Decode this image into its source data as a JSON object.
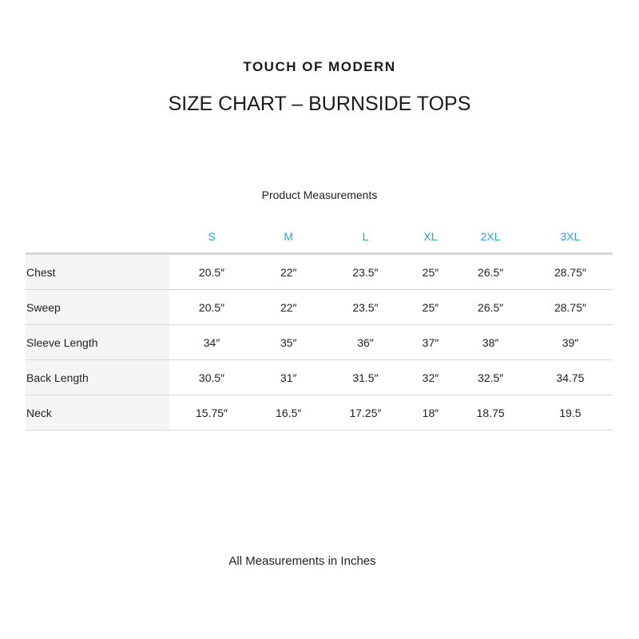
{
  "brand": "TOUCH OF MODERN",
  "title": "SIZE CHART – BURNSIDE TOPS",
  "subtitle": "Product Measurements",
  "table": {
    "sizes": [
      "S",
      "M",
      "L",
      "XL",
      "2XL",
      "3XL"
    ],
    "rows": [
      {
        "label": "Chest",
        "values": [
          "20.5″",
          "22″",
          "23.5″",
          "25″",
          "26.5″",
          "28.75″"
        ]
      },
      {
        "label": "Sweep",
        "values": [
          "20.5″",
          "22″",
          "23.5″",
          "25″",
          "26.5″",
          "28.75″"
        ]
      },
      {
        "label": "Sleeve Length",
        "values": [
          "34″",
          "35″",
          "36″",
          "37″",
          "38″",
          "39″"
        ]
      },
      {
        "label": "Back Length",
        "values": [
          "30.5″",
          "31″",
          "31.5″",
          "32″",
          "32.5″",
          "34.75"
        ]
      },
      {
        "label": "Neck",
        "values": [
          "15.75″",
          "16.5″",
          "17.25″",
          "18″",
          "18.75",
          "19.5"
        ]
      }
    ]
  },
  "footer": "All Measurements in Inches",
  "colors": {
    "size_header": "#2aa0d4",
    "label_bg": "#f5f5f5",
    "divider": "#d8d8d8"
  }
}
